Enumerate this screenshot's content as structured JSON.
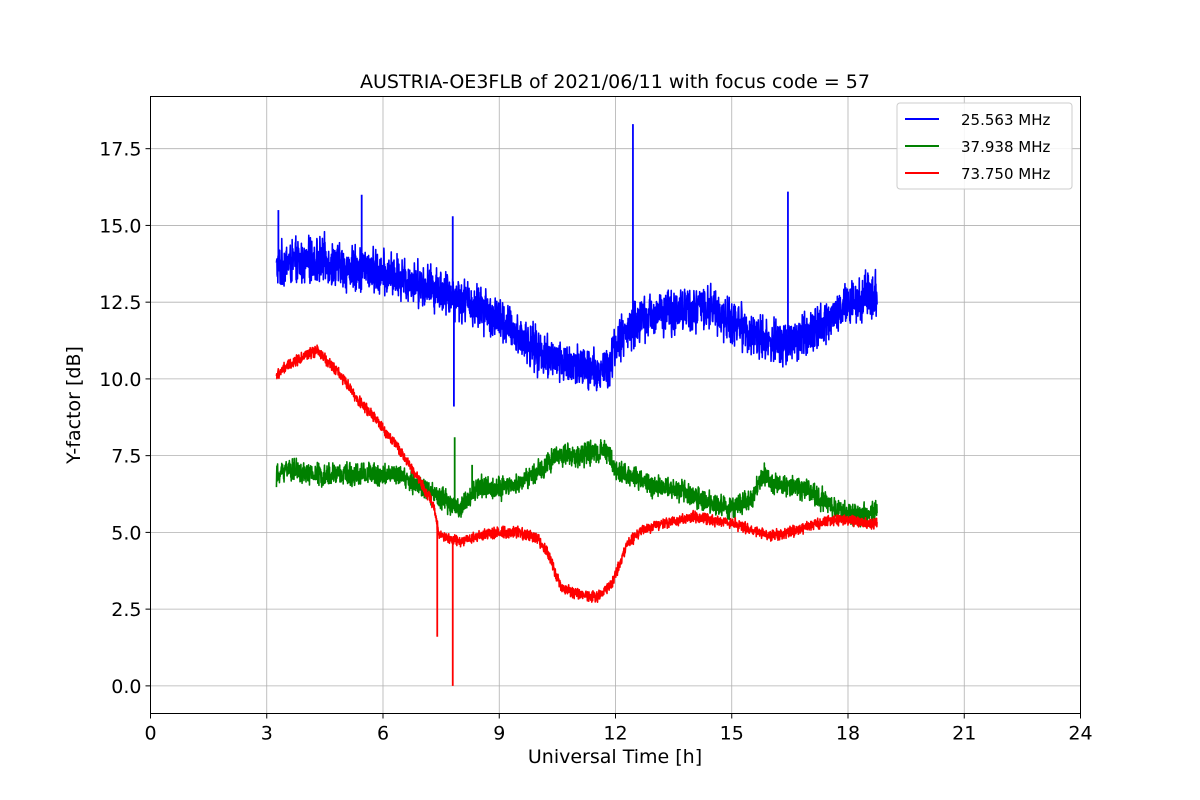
{
  "chart_data": {
    "type": "line",
    "title": "AUSTRIA-OE3FLB of 2021/06/11 with focus code = 57",
    "xlabel": "Universal Time [h]",
    "ylabel": "Y-factor [dB]",
    "xlim": [
      0,
      24
    ],
    "ylim": [
      -0.9,
      19.2
    ],
    "xticks": [
      0,
      3,
      6,
      9,
      12,
      15,
      18,
      21,
      24
    ],
    "xtick_labels": [
      "0",
      "3",
      "6",
      "9",
      "12",
      "15",
      "18",
      "21",
      "24"
    ],
    "yticks": [
      0,
      2.5,
      5,
      7.5,
      10,
      12.5,
      15,
      17.5
    ],
    "ytick_labels": [
      "0.0",
      "2.5",
      "5.0",
      "7.5",
      "10.0",
      "12.5",
      "15.0",
      "17.5"
    ],
    "grid": true,
    "legend_position": "top-right",
    "series": [
      {
        "name": "25.563 MHz",
        "color": "#0000ff",
        "noise_amplitude": 0.9,
        "x": [
          3.25,
          3.5,
          4.0,
          4.5,
          5.0,
          5.5,
          6.0,
          6.5,
          7.0,
          7.5,
          8.0,
          8.5,
          9.0,
          9.5,
          10.0,
          10.5,
          11.0,
          11.5,
          11.8,
          12.0,
          12.5,
          13.0,
          13.5,
          14.0,
          14.5,
          15.0,
          15.5,
          16.0,
          16.5,
          17.0,
          17.5,
          18.0,
          18.5,
          18.75
        ],
        "y": [
          13.6,
          13.8,
          13.8,
          13.9,
          13.6,
          13.6,
          13.4,
          13.3,
          13.1,
          12.9,
          12.6,
          12.3,
          11.9,
          11.4,
          10.9,
          10.6,
          10.4,
          10.2,
          10.4,
          11.1,
          11.8,
          12.1,
          12.2,
          12.3,
          12.3,
          11.9,
          11.5,
          11.2,
          11.2,
          11.5,
          12.0,
          12.4,
          12.7,
          12.8
        ],
        "spikes": [
          {
            "x": 3.3,
            "y": 15.5
          },
          {
            "x": 5.45,
            "y": 16.0
          },
          {
            "x": 7.8,
            "y": 15.3
          },
          {
            "x": 7.83,
            "y": 9.1
          },
          {
            "x": 12.45,
            "y": 18.3
          },
          {
            "x": 16.45,
            "y": 16.1
          }
        ]
      },
      {
        "name": "37.938 MHz",
        "color": "#008000",
        "noise_amplitude": 0.45,
        "x": [
          3.25,
          3.5,
          4.0,
          5.0,
          6.0,
          6.5,
          7.0,
          7.5,
          8.0,
          8.5,
          9.0,
          9.5,
          10.0,
          10.5,
          11.0,
          11.5,
          11.75,
          12.0,
          12.5,
          13.0,
          13.5,
          14.0,
          14.5,
          15.0,
          15.5,
          15.8,
          16.2,
          17.0,
          17.5,
          18.0,
          18.5,
          18.75
        ],
        "y": [
          6.8,
          7.1,
          6.9,
          6.9,
          6.9,
          6.8,
          6.5,
          6.1,
          5.8,
          6.5,
          6.4,
          6.6,
          7.0,
          7.5,
          7.5,
          7.6,
          7.7,
          7.0,
          6.8,
          6.5,
          6.4,
          6.2,
          5.9,
          5.8,
          6.0,
          6.9,
          6.5,
          6.4,
          5.9,
          5.6,
          5.6,
          5.7
        ],
        "spikes": [
          {
            "x": 7.85,
            "y": 8.1
          },
          {
            "x": 8.3,
            "y": 7.2
          }
        ]
      },
      {
        "name": "73.750 MHz",
        "color": "#ff0000",
        "noise_amplitude": 0.22,
        "x": [
          3.25,
          3.5,
          4.0,
          4.3,
          4.8,
          5.3,
          5.8,
          6.3,
          6.8,
          7.3,
          7.45,
          8.0,
          8.5,
          9.0,
          9.5,
          10.0,
          10.3,
          10.6,
          11.0,
          11.5,
          11.9,
          12.3,
          12.6,
          13.0,
          14.0,
          15.0,
          15.5,
          16.0,
          16.5,
          17.0,
          17.5,
          18.0,
          18.5,
          18.75
        ],
        "y": [
          10.1,
          10.4,
          10.8,
          10.9,
          10.3,
          9.4,
          8.7,
          7.9,
          7.0,
          5.9,
          4.9,
          4.7,
          4.9,
          5.0,
          5.0,
          4.8,
          4.2,
          3.2,
          3.0,
          2.9,
          3.3,
          4.6,
          5.0,
          5.2,
          5.5,
          5.3,
          5.1,
          4.9,
          5.0,
          5.2,
          5.4,
          5.4,
          5.3,
          5.3
        ],
        "spikes": [
          {
            "x": 7.4,
            "y": 1.6
          },
          {
            "x": 7.8,
            "y": 0.0
          }
        ]
      }
    ]
  }
}
